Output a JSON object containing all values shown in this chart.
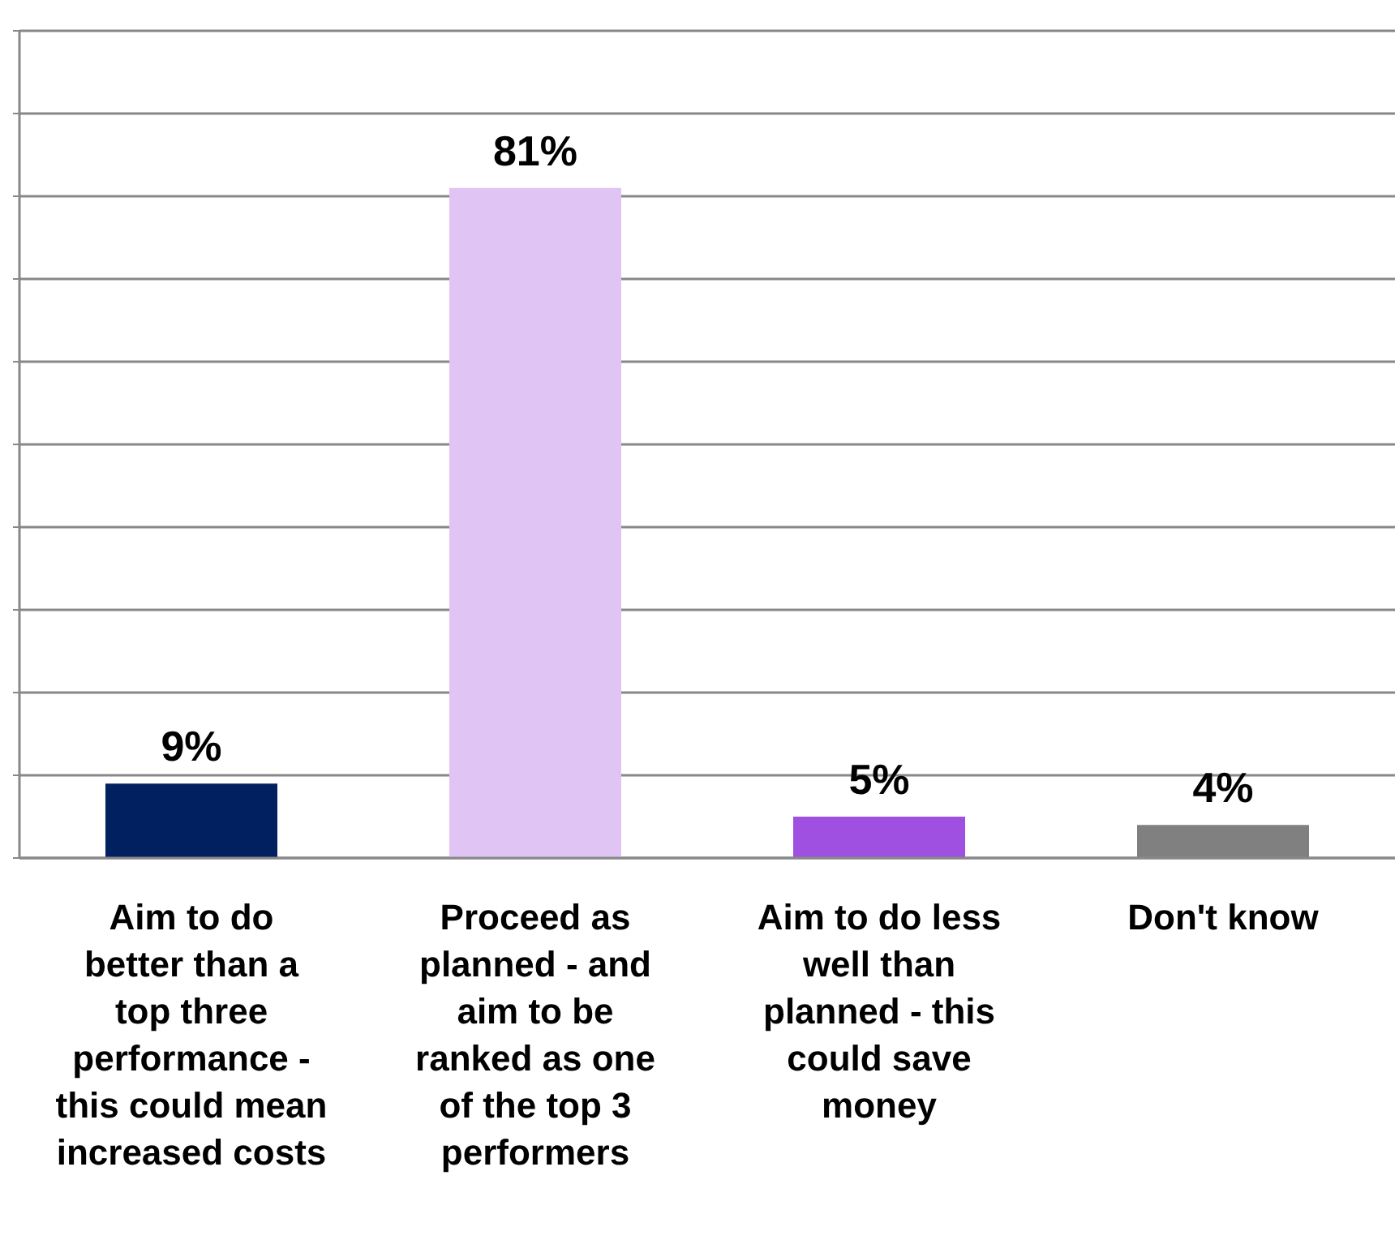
{
  "chart_data": {
    "type": "bar",
    "categories": [
      "Aim to do better than a top three performance - this could mean increased costs",
      "Proceed as planned - and aim to be ranked as one of the top 3 performers",
      "Aim to do less well than planned - this could save money",
      "Don't know"
    ],
    "values": [
      9,
      81,
      5,
      4
    ],
    "colors": [
      "#002060",
      "#e0c4f4",
      "#a050e0",
      "#808080"
    ],
    "value_labels": [
      "9%",
      "81%",
      "5%",
      "4%"
    ],
    "ylim": [
      0,
      100
    ],
    "tick_labels": "x",
    "grid": "y",
    "legend": false
  }
}
